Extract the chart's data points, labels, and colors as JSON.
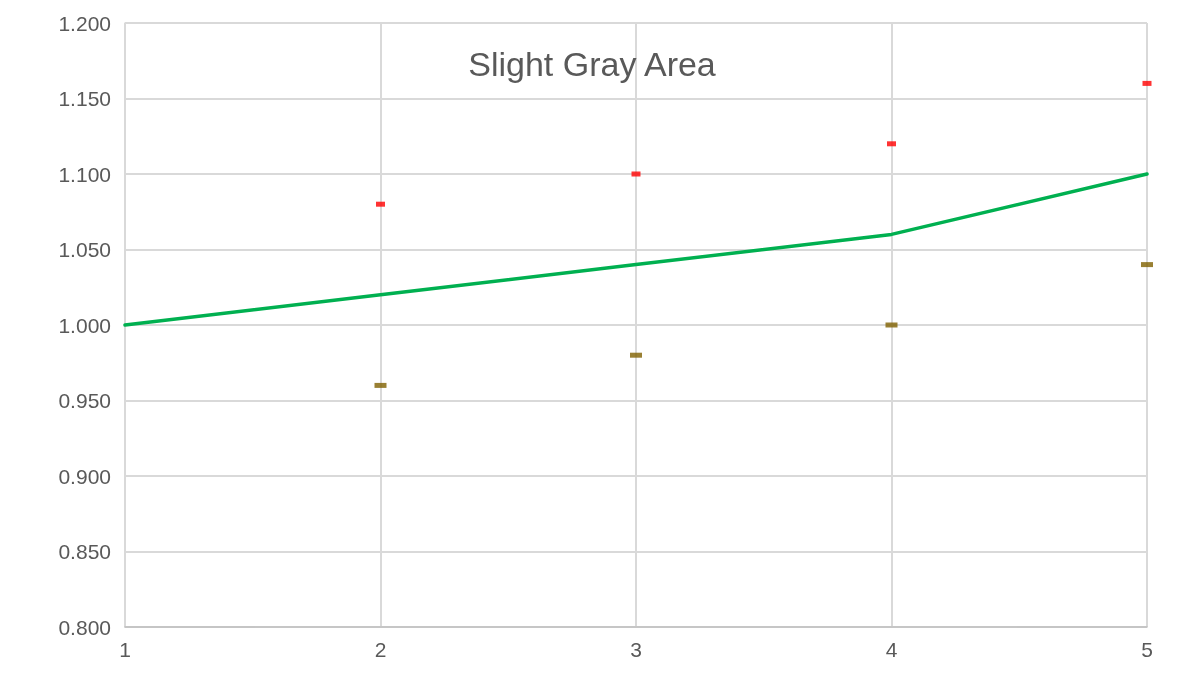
{
  "chart_data": {
    "type": "line",
    "title": "Slight Gray Area",
    "x": [
      1,
      2,
      3,
      4,
      5
    ],
    "series": [
      {
        "color": "#00b050",
        "values": [
          1.0,
          1.02,
          1.04,
          1.06,
          1.1
        ]
      },
      {
        "type": "scatter",
        "color": "#ff0000",
        "x": [
          2,
          3,
          4,
          5
        ],
        "values": [
          1.08,
          1.1,
          1.12,
          1.16
        ]
      },
      {
        "type": "scatter",
        "color": "#7f6000",
        "x": [
          2,
          3,
          4,
          5
        ],
        "values": [
          0.96,
          0.98,
          1.0,
          1.04
        ]
      }
    ],
    "xlim": [
      1,
      5
    ],
    "xticks": [
      1,
      2,
      3,
      4,
      5
    ],
    "ylim": [
      0.8,
      1.2
    ],
    "yticks": [
      {
        "value": 0.8,
        "label": "0.800"
      },
      {
        "value": 0.85,
        "label": "0.850"
      },
      {
        "value": 0.9,
        "label": "0.900"
      },
      {
        "value": 0.95,
        "label": "0.950"
      },
      {
        "value": 1.0,
        "label": "1.000"
      },
      {
        "value": 1.05,
        "label": "1.050"
      },
      {
        "value": 1.1,
        "label": "1.100"
      },
      {
        "value": 1.15,
        "label": "1.150"
      },
      {
        "value": 1.2,
        "label": "1.200"
      }
    ],
    "grid": true
  }
}
